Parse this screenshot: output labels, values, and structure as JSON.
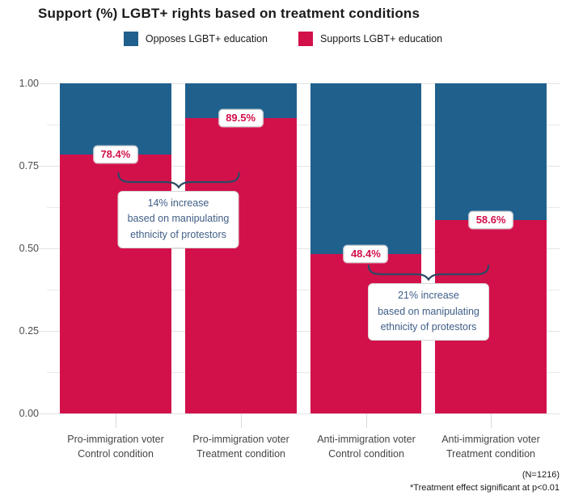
{
  "title": "Support (%) LGBT+ rights based on treatment conditions",
  "legend": [
    {
      "label": "Opposes LGBT+ education",
      "color": "#20608d"
    },
    {
      "label": "Supports LGBT+ education",
      "color": "#d2114b"
    }
  ],
  "caption": {
    "n": "(N=1216)",
    "note": "*Treatment effect significant at p<0.01"
  },
  "colors": {
    "opposes_blue": "#20608d",
    "supports_red": "#d2114b",
    "annotation_text": "#3f5e87",
    "brace": "#2c4964",
    "gridline": "#e7e7e7"
  },
  "chart_data": {
    "type": "bar",
    "stacked": true,
    "orientation": "vertical",
    "categories": [
      [
        "Pro-immigration voter",
        "Control condition"
      ],
      [
        "Pro-immigration voter",
        "Treatment condition"
      ],
      [
        "Anti-immigration voter",
        "Control condition"
      ],
      [
        "Anti-immigration voter",
        "Treatment condition"
      ]
    ],
    "series": [
      {
        "name": "Supports LGBT+ education",
        "color": "#d2114b",
        "values": [
          0.784,
          0.895,
          0.484,
          0.586
        ]
      },
      {
        "name": "Opposes LGBT+ education",
        "color": "#20608d",
        "values": [
          0.216,
          0.105,
          0.516,
          0.414
        ]
      }
    ],
    "bar_labels": [
      "78.4%",
      "89.5%",
      "48.4%",
      "58.6%"
    ],
    "yticks": [
      "1.00",
      "0.75",
      "0.50",
      "0.25",
      "0.00"
    ],
    "ytick_values": [
      1.0,
      0.75,
      0.5,
      0.25,
      0.0
    ],
    "ylim": [
      0,
      1
    ],
    "grid": {
      "horizontal": true,
      "step": 0.125,
      "major_step": 0.25
    },
    "legend_position": "top",
    "annotations": [
      {
        "lines": [
          "14% increase",
          "based on manipulating",
          "ethnicity of protestors"
        ],
        "between_bars": [
          0,
          1
        ],
        "brace_top_value": 0.735
      },
      {
        "lines": [
          "21% increase",
          "based on manipulating",
          "ethnicity of protestors"
        ],
        "between_bars": [
          2,
          3
        ],
        "brace_top_value": 0.455
      }
    ]
  }
}
